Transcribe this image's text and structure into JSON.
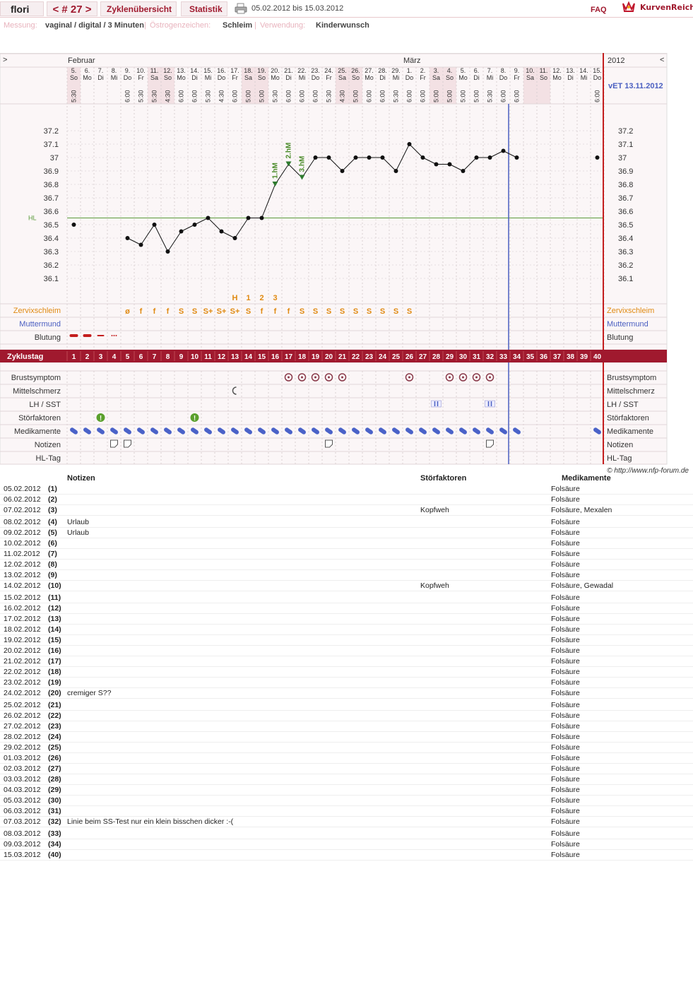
{
  "header": {
    "user": "flori",
    "cycle_nav": "< # 27 >",
    "tab_overview": "Zyklenübersicht",
    "tab_stats": "Statistik",
    "print_icon": "printer-icon",
    "date_range": "05.02.2012 bis 15.03.2012",
    "faq": "FAQ",
    "logo": "KurvenReich",
    "logo_icon": "crown-icon"
  },
  "info": {
    "measure_label": "Messung:",
    "measure_value": "vaginal / digital / 3 Minuten",
    "estrogen_label": "Östrogenzeichen:",
    "estrogen_value": "Schleim",
    "usage_label": "Verwendung:",
    "usage_value": "Kinderwunsch"
  },
  "chart": {
    "nav_left": ">",
    "nav_right": "<",
    "month1": "Februar",
    "month2": "März",
    "year": "2012",
    "vet": "vET 13.11.2012",
    "hl_label": "HL",
    "days": [
      {
        "d": "5.",
        "w": "So",
        "t": "5:30",
        "we": true
      },
      {
        "d": "6.",
        "w": "Mo",
        "t": "",
        "we": false
      },
      {
        "d": "7.",
        "w": "Di",
        "t": "",
        "we": false
      },
      {
        "d": "8.",
        "w": "Mi",
        "t": "",
        "we": false
      },
      {
        "d": "9.",
        "w": "Do",
        "t": "6:00",
        "we": false
      },
      {
        "d": "10.",
        "w": "Fr",
        "t": "5:30",
        "we": false
      },
      {
        "d": "11.",
        "w": "Sa",
        "t": "5:30",
        "we": true
      },
      {
        "d": "12.",
        "w": "So",
        "t": "4:30",
        "we": true
      },
      {
        "d": "13.",
        "w": "Mo",
        "t": "6:00",
        "we": false
      },
      {
        "d": "14.",
        "w": "Di",
        "t": "6:00",
        "we": false
      },
      {
        "d": "15.",
        "w": "Mi",
        "t": "5:30",
        "we": false
      },
      {
        "d": "16.",
        "w": "Do",
        "t": "4:30",
        "we": false
      },
      {
        "d": "17.",
        "w": "Fr",
        "t": "6:00",
        "we": false
      },
      {
        "d": "18.",
        "w": "Sa",
        "t": "5:00",
        "we": true
      },
      {
        "d": "19.",
        "w": "So",
        "t": "5:00",
        "we": true
      },
      {
        "d": "20.",
        "w": "Mo",
        "t": "5:30",
        "we": false
      },
      {
        "d": "21.",
        "w": "Di",
        "t": "6:00",
        "we": false
      },
      {
        "d": "22.",
        "w": "Mi",
        "t": "6:00",
        "we": false
      },
      {
        "d": "23.",
        "w": "Do",
        "t": "6:00",
        "we": false
      },
      {
        "d": "24.",
        "w": "Fr",
        "t": "5:30",
        "we": false
      },
      {
        "d": "25.",
        "w": "Sa",
        "t": "4:30",
        "we": true
      },
      {
        "d": "26.",
        "w": "So",
        "t": "5:00",
        "we": true
      },
      {
        "d": "27.",
        "w": "Mo",
        "t": "6:00",
        "we": false
      },
      {
        "d": "28.",
        "w": "Di",
        "t": "6:00",
        "we": false
      },
      {
        "d": "29.",
        "w": "Mi",
        "t": "5:30",
        "we": false
      },
      {
        "d": "1.",
        "w": "Do",
        "t": "6:00",
        "we": false
      },
      {
        "d": "2.",
        "w": "Fr",
        "t": "6:00",
        "we": false
      },
      {
        "d": "3.",
        "w": "Sa",
        "t": "5:00",
        "we": true
      },
      {
        "d": "4.",
        "w": "So",
        "t": "5:00",
        "we": true
      },
      {
        "d": "5.",
        "w": "Mo",
        "t": "5:00",
        "we": false
      },
      {
        "d": "6.",
        "w": "Di",
        "t": "5:00",
        "we": false
      },
      {
        "d": "7.",
        "w": "Mi",
        "t": "5:30",
        "we": false
      },
      {
        "d": "8.",
        "w": "Do",
        "t": "6:00",
        "we": false
      },
      {
        "d": "9.",
        "w": "Fr",
        "t": "6:00",
        "we": false
      },
      {
        "d": "10.",
        "w": "Sa",
        "t": "",
        "we": true
      },
      {
        "d": "11.",
        "w": "So",
        "t": "",
        "we": true
      },
      {
        "d": "12.",
        "w": "Mo",
        "t": "",
        "we": false
      },
      {
        "d": "13.",
        "w": "Di",
        "t": "",
        "we": false
      },
      {
        "d": "14.",
        "w": "Mi",
        "t": "",
        "we": false
      },
      {
        "d": "15.",
        "w": "Do",
        "t": "6:00",
        "we": false
      }
    ],
    "yticks": [
      "37.2",
      "37.1",
      "37",
      "36.9",
      "36.8",
      "36.7",
      "36.6",
      "36.5",
      "36.4",
      "36.3",
      "36.2",
      "36.1"
    ],
    "temps": [
      36.5,
      null,
      null,
      null,
      36.4,
      36.35,
      36.5,
      36.3,
      36.45,
      36.5,
      36.55,
      36.45,
      36.4,
      36.55,
      36.55,
      36.8,
      36.95,
      36.85,
      37.0,
      37.0,
      36.9,
      37.0,
      37.0,
      37.0,
      36.9,
      37.1,
      37.0,
      36.95,
      36.95,
      36.9,
      37.0,
      37.0,
      37.05,
      37.0,
      null,
      null,
      null,
      null,
      null,
      37.0
    ],
    "hl_temp": 36.55,
    "hm_labels": [
      {
        "day": 16,
        "text": "1.hM"
      },
      {
        "day": 17,
        "text": "2.hM"
      },
      {
        "day": 18,
        "text": "3.hM"
      }
    ],
    "peak_labels": [
      {
        "day": 13,
        "text": "H"
      },
      {
        "day": 14,
        "text": "1"
      },
      {
        "day": 15,
        "text": "2"
      },
      {
        "day": 16,
        "text": "3"
      }
    ],
    "mucus": [
      "",
      "",
      "",
      "",
      "ø",
      "f",
      "f",
      "f",
      "S",
      "S",
      "S+",
      "S+",
      "S+",
      "S",
      "f",
      "f",
      "f",
      "S",
      "S",
      "S",
      "S",
      "S",
      "S",
      "S",
      "S",
      "S",
      "",
      "",
      "",
      "",
      "",
      "",
      "",
      "",
      "",
      "",
      "",
      "",
      "",
      ""
    ],
    "bleeding": [
      3,
      3,
      2,
      1,
      0,
      0,
      0,
      0,
      0,
      0,
      0,
      0,
      0,
      0,
      0,
      0,
      0,
      0,
      0,
      0,
      0,
      0,
      0,
      0,
      0,
      0,
      0,
      0,
      0,
      0,
      0,
      0,
      0,
      0,
      0,
      0,
      0,
      0,
      0,
      0
    ],
    "breast_days": [
      17,
      18,
      19,
      20,
      21,
      26,
      29,
      30,
      31,
      32
    ],
    "pain_days": [
      13
    ],
    "lh_days": [
      28,
      32
    ],
    "disturb_days": [
      3,
      10
    ],
    "med_days": [
      1,
      2,
      3,
      4,
      5,
      6,
      7,
      8,
      9,
      10,
      11,
      12,
      13,
      14,
      15,
      16,
      17,
      18,
      19,
      20,
      21,
      22,
      23,
      24,
      25,
      26,
      27,
      28,
      29,
      30,
      31,
      32,
      33,
      34,
      40
    ],
    "note_days": [
      4,
      5,
      20,
      32
    ],
    "row_labels": {
      "zervix": "Zervixschleim",
      "mutter": "Muttermund",
      "blutung": "Blutung",
      "zyklustag": "Zyklustag",
      "brust": "Brustsymptom",
      "mittel": "Mittelschmerz",
      "lh": "LH / SST",
      "stoer": "Störfaktoren",
      "medi": "Medikamente",
      "notizen": "Notizen",
      "hltag": "HL-Tag"
    },
    "copyright": "© http://www.nfp-forum.de"
  },
  "notes_table": {
    "col_notes": "Notizen",
    "col_disturb": "Störfaktoren",
    "col_meds": "Medikamente",
    "rows": [
      {
        "date": "05.02.2012",
        "cd": "(1)",
        "note": "",
        "dist": "",
        "med": "Folsäure"
      },
      {
        "date": "06.02.2012",
        "cd": "(2)",
        "note": "",
        "dist": "",
        "med": "Folsäure"
      },
      {
        "date": "07.02.2012",
        "cd": "(3)",
        "note": "",
        "dist": "Kopfweh",
        "med": "Folsäure, Mexalen"
      },
      {
        "date": "08.02.2012",
        "cd": "(4)",
        "note": "Urlaub",
        "dist": "",
        "med": "Folsäure"
      },
      {
        "date": "09.02.2012",
        "cd": "(5)",
        "note": "Urlaub",
        "dist": "",
        "med": "Folsäure"
      },
      {
        "date": "10.02.2012",
        "cd": "(6)",
        "note": "",
        "dist": "",
        "med": "Folsäure"
      },
      {
        "date": "11.02.2012",
        "cd": "(7)",
        "note": "",
        "dist": "",
        "med": "Folsäure"
      },
      {
        "date": "12.02.2012",
        "cd": "(8)",
        "note": "",
        "dist": "",
        "med": "Folsäure"
      },
      {
        "date": "13.02.2012",
        "cd": "(9)",
        "note": "",
        "dist": "",
        "med": "Folsäure"
      },
      {
        "date": "14.02.2012",
        "cd": "(10)",
        "note": "",
        "dist": "Kopfweh",
        "med": "Folsäure, Gewadal"
      },
      {
        "date": "15.02.2012",
        "cd": "(11)",
        "note": "",
        "dist": "",
        "med": "Folsäure"
      },
      {
        "date": "16.02.2012",
        "cd": "(12)",
        "note": "",
        "dist": "",
        "med": "Folsäure"
      },
      {
        "date": "17.02.2012",
        "cd": "(13)",
        "note": "",
        "dist": "",
        "med": "Folsäure"
      },
      {
        "date": "18.02.2012",
        "cd": "(14)",
        "note": "",
        "dist": "",
        "med": "Folsäure"
      },
      {
        "date": "19.02.2012",
        "cd": "(15)",
        "note": "",
        "dist": "",
        "med": "Folsäure"
      },
      {
        "date": "20.02.2012",
        "cd": "(16)",
        "note": "",
        "dist": "",
        "med": "Folsäure"
      },
      {
        "date": "21.02.2012",
        "cd": "(17)",
        "note": "",
        "dist": "",
        "med": "Folsäure"
      },
      {
        "date": "22.02.2012",
        "cd": "(18)",
        "note": "",
        "dist": "",
        "med": "Folsäure"
      },
      {
        "date": "23.02.2012",
        "cd": "(19)",
        "note": "",
        "dist": "",
        "med": "Folsäure"
      },
      {
        "date": "24.02.2012",
        "cd": "(20)",
        "note": "cremiger S??",
        "dist": "",
        "med": "Folsäure"
      },
      {
        "date": "25.02.2012",
        "cd": "(21)",
        "note": "",
        "dist": "",
        "med": "Folsäure"
      },
      {
        "date": "26.02.2012",
        "cd": "(22)",
        "note": "",
        "dist": "",
        "med": "Folsäure"
      },
      {
        "date": "27.02.2012",
        "cd": "(23)",
        "note": "",
        "dist": "",
        "med": "Folsäure"
      },
      {
        "date": "28.02.2012",
        "cd": "(24)",
        "note": "",
        "dist": "",
        "med": "Folsäure"
      },
      {
        "date": "29.02.2012",
        "cd": "(25)",
        "note": "",
        "dist": "",
        "med": "Folsäure"
      },
      {
        "date": "01.03.2012",
        "cd": "(26)",
        "note": "",
        "dist": "",
        "med": "Folsäure"
      },
      {
        "date": "02.03.2012",
        "cd": "(27)",
        "note": "",
        "dist": "",
        "med": "Folsäure"
      },
      {
        "date": "03.03.2012",
        "cd": "(28)",
        "note": "",
        "dist": "",
        "med": "Folsäure"
      },
      {
        "date": "04.03.2012",
        "cd": "(29)",
        "note": "",
        "dist": "",
        "med": "Folsäure"
      },
      {
        "date": "05.03.2012",
        "cd": "(30)",
        "note": "",
        "dist": "",
        "med": "Folsäure"
      },
      {
        "date": "06.03.2012",
        "cd": "(31)",
        "note": "",
        "dist": "",
        "med": "Folsäure"
      },
      {
        "date": "07.03.2012",
        "cd": "(32)",
        "note": "Linie beim SS-Test nur ein klein bisschen dicker :-(",
        "dist": "",
        "med": "Folsäure"
      },
      {
        "date": "08.03.2012",
        "cd": "(33)",
        "note": "",
        "dist": "",
        "med": "Folsäure"
      },
      {
        "date": "09.03.2012",
        "cd": "(34)",
        "note": "",
        "dist": "",
        "med": "Folsäure"
      },
      {
        "date": "15.03.2012",
        "cd": "(40)",
        "note": "",
        "dist": "",
        "med": "Folsäure"
      }
    ]
  }
}
